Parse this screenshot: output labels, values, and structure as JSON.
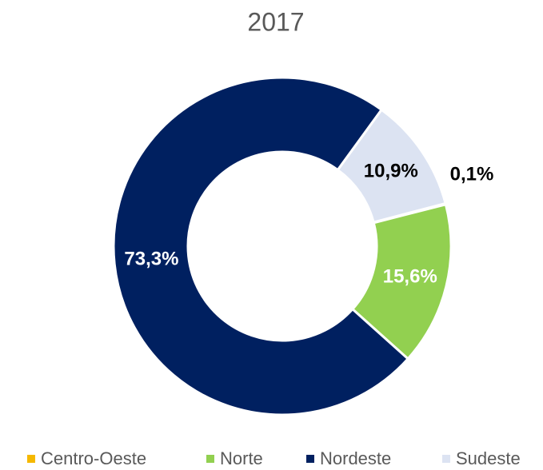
{
  "chart_data": {
    "type": "donut",
    "title": "2017",
    "categories": [
      "Centro-Oeste",
      "Norte",
      "Nordeste",
      "Sudeste"
    ],
    "values": [
      0.1,
      15.6,
      73.3,
      10.9
    ],
    "value_labels": [
      "0,1%",
      "15,6%",
      "73,3%",
      "10,9%"
    ],
    "colors": [
      "#f5b800",
      "#92d050",
      "#002060",
      "#dce3f2"
    ],
    "legend": "bottom"
  }
}
